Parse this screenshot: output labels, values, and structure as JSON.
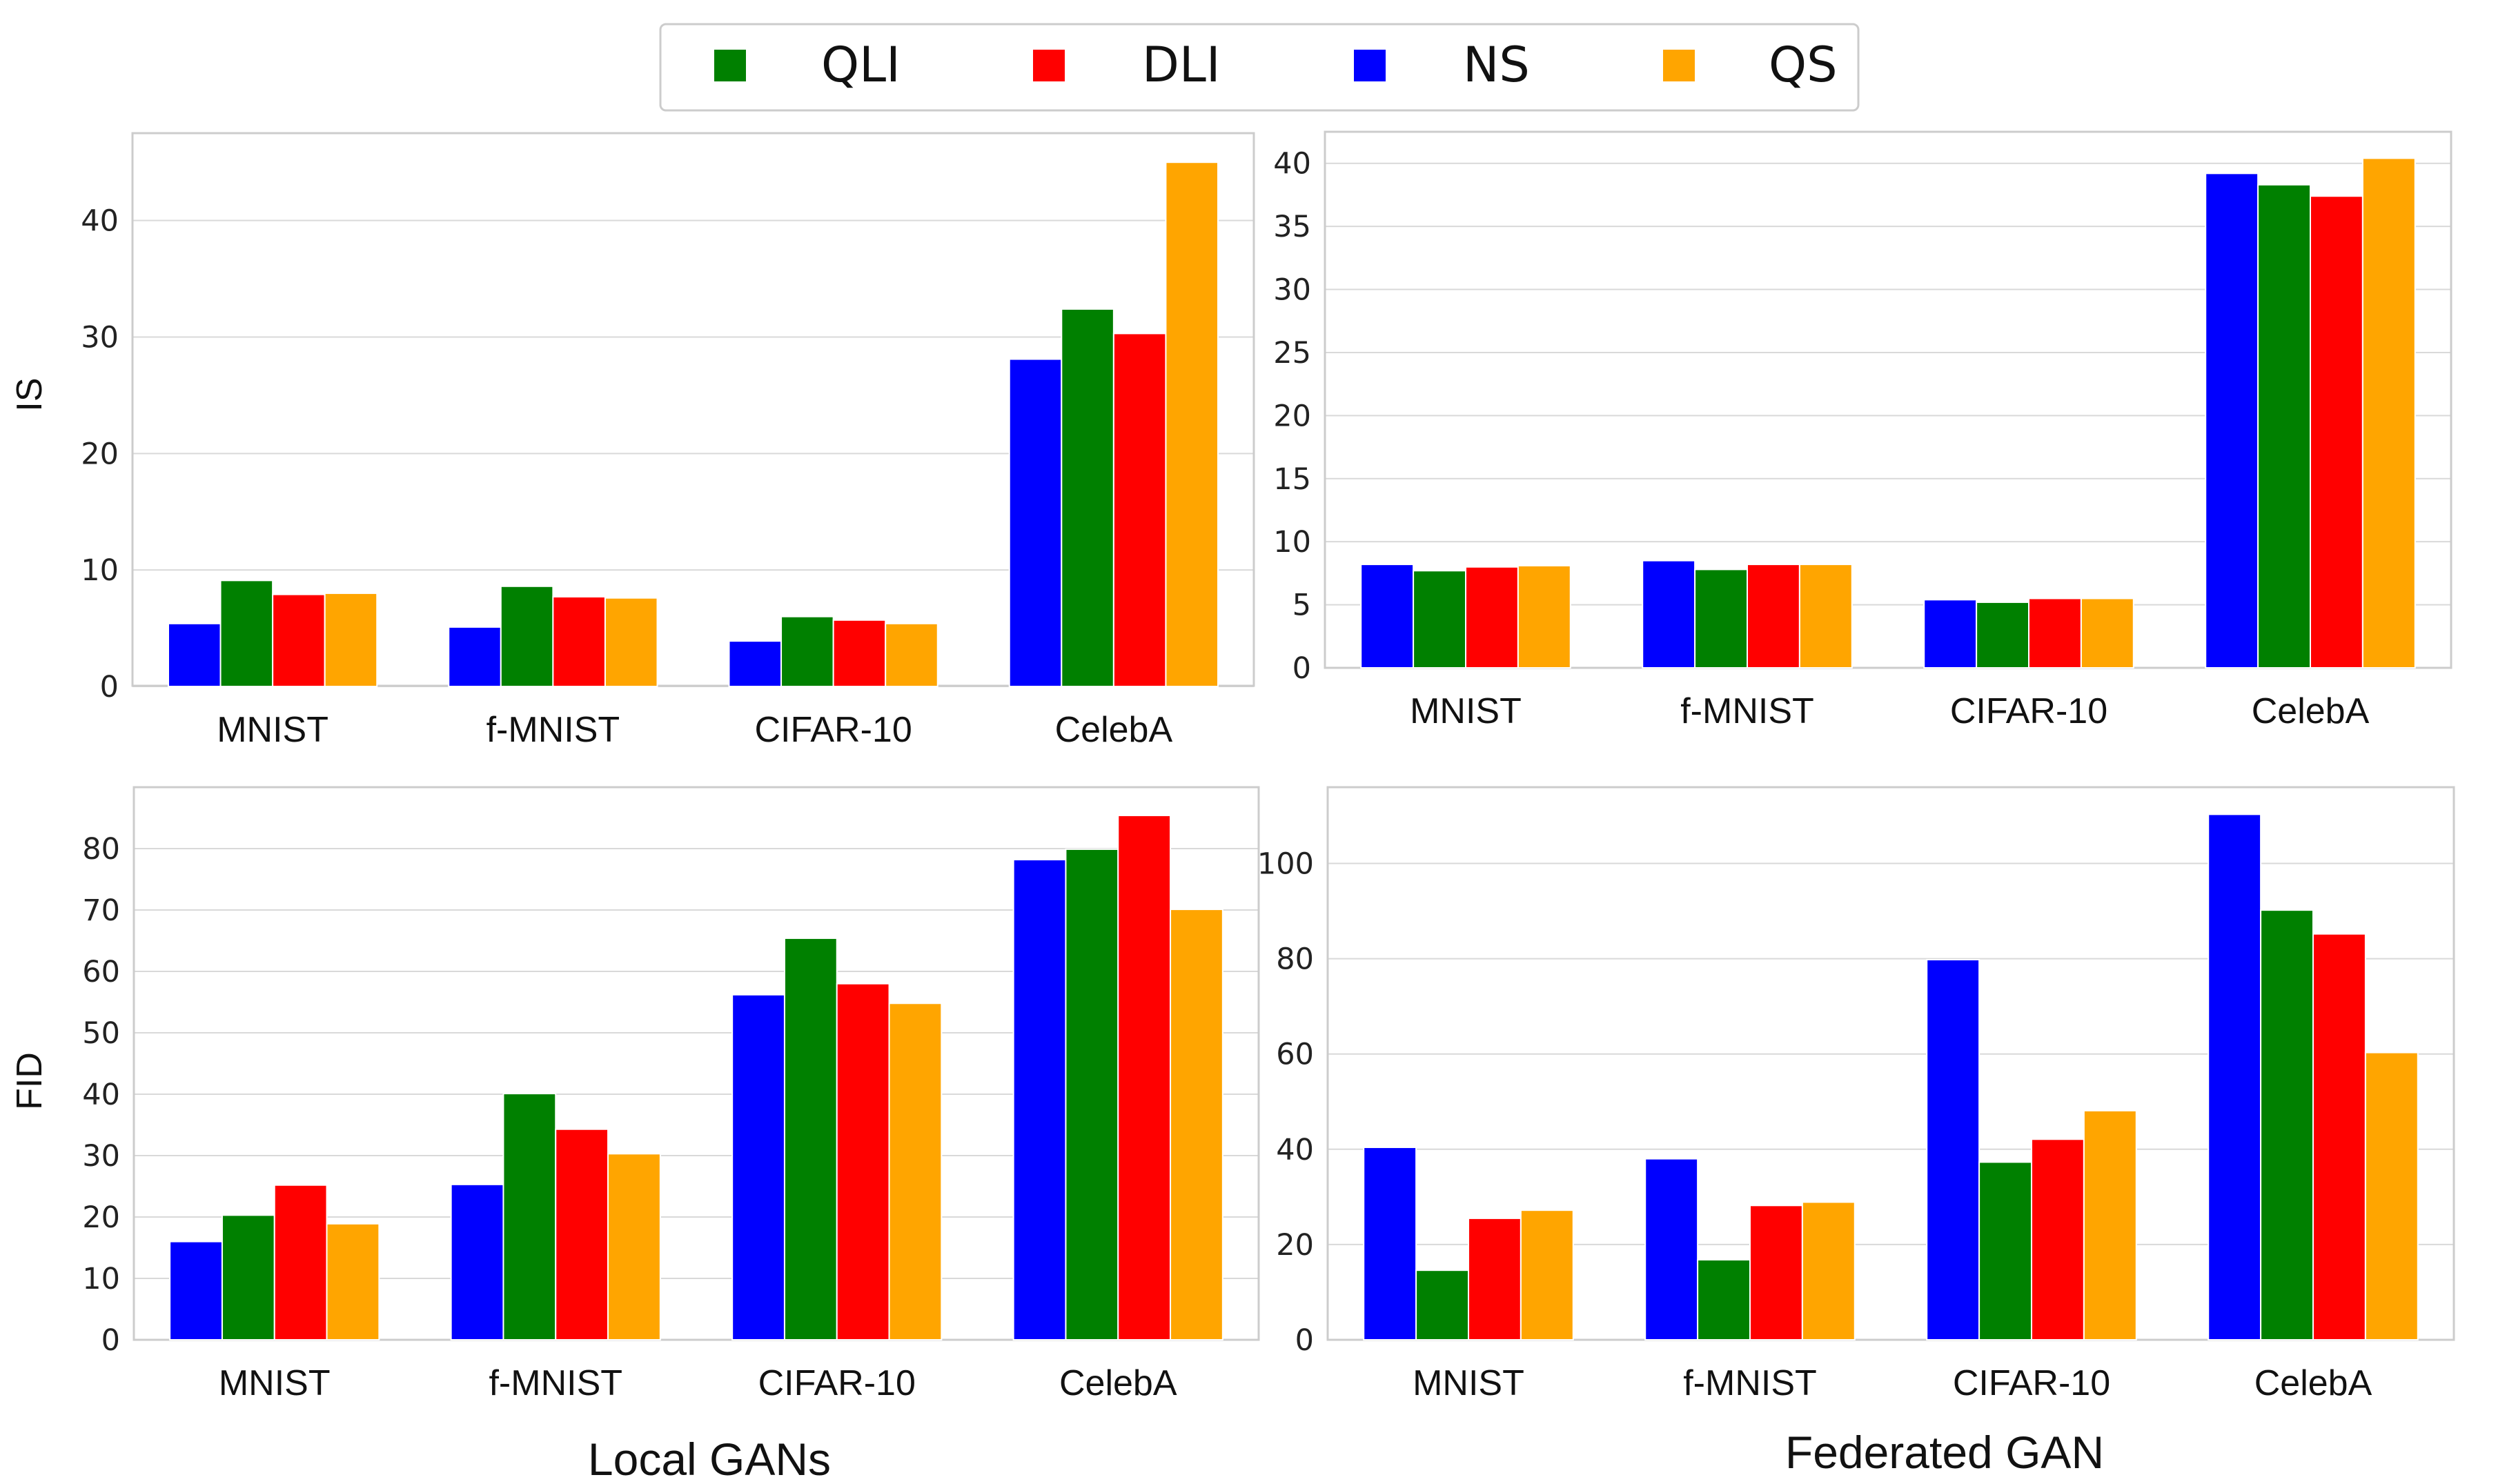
{
  "legend": [
    {
      "label": "QLI",
      "color": "#008000"
    },
    {
      "label": "DLI",
      "color": "#ff0000"
    },
    {
      "label": "NS",
      "color": "#0000ff"
    },
    {
      "label": "QS",
      "color": "#ffa500"
    }
  ],
  "series_order": [
    "NS",
    "QLI",
    "DLI",
    "QS"
  ],
  "captions": {
    "left": "Local GANs",
    "right": "Federated GAN"
  },
  "chart_data": [
    {
      "type": "bar",
      "id": "local-is",
      "categories": [
        "MNIST",
        "f-MNIST",
        "CIFAR-10",
        "CelebA"
      ],
      "ylabel": "IS",
      "ylim": [
        0,
        47.5
      ],
      "yticks": [
        0,
        10,
        20,
        30,
        40
      ],
      "grid": true,
      "series": [
        {
          "name": "NS",
          "values": [
            5.4,
            5.1,
            3.9,
            28.1
          ]
        },
        {
          "name": "QLI",
          "values": [
            9.1,
            8.6,
            6.0,
            32.4
          ]
        },
        {
          "name": "DLI",
          "values": [
            7.9,
            7.7,
            5.7,
            30.3
          ]
        },
        {
          "name": "QS",
          "values": [
            8.0,
            7.6,
            5.4,
            45.0
          ]
        }
      ]
    },
    {
      "type": "bar",
      "id": "federated-is",
      "categories": [
        "MNIST",
        "f-MNIST",
        "CIFAR-10",
        "CelebA"
      ],
      "ylabel": "",
      "ylim": [
        0,
        42.5
      ],
      "yticks": [
        0,
        5,
        10,
        15,
        20,
        25,
        30,
        35,
        40
      ],
      "grid": true,
      "series": [
        {
          "name": "NS",
          "values": [
            8.2,
            8.5,
            5.4,
            39.2
          ]
        },
        {
          "name": "QLI",
          "values": [
            7.7,
            7.8,
            5.2,
            38.3
          ]
        },
        {
          "name": "DLI",
          "values": [
            8.0,
            8.2,
            5.5,
            37.4
          ]
        },
        {
          "name": "QS",
          "values": [
            8.1,
            8.2,
            5.5,
            40.4
          ]
        }
      ]
    },
    {
      "type": "bar",
      "id": "local-fid",
      "categories": [
        "MNIST",
        "f-MNIST",
        "CIFAR-10",
        "CelebA"
      ],
      "ylabel": "FID",
      "ylim": [
        0,
        90
      ],
      "yticks": [
        0,
        10,
        20,
        30,
        40,
        50,
        60,
        70,
        80
      ],
      "grid": true,
      "series": [
        {
          "name": "NS",
          "values": [
            16.0,
            25.3,
            56.2,
            78.2
          ]
        },
        {
          "name": "QLI",
          "values": [
            20.3,
            40.1,
            65.4,
            79.9
          ]
        },
        {
          "name": "DLI",
          "values": [
            25.2,
            34.3,
            58.0,
            85.4
          ]
        },
        {
          "name": "QS",
          "values": [
            18.9,
            30.3,
            54.8,
            70.1
          ]
        }
      ]
    },
    {
      "type": "bar",
      "id": "federated-fid",
      "categories": [
        "MNIST",
        "f-MNIST",
        "CIFAR-10",
        "CelebA"
      ],
      "ylabel": "",
      "ylim": [
        0,
        116
      ],
      "yticks": [
        0,
        20,
        40,
        60,
        80,
        100
      ],
      "grid": true,
      "series": [
        {
          "name": "NS",
          "values": [
            40.4,
            38.0,
            79.8,
            110.3
          ]
        },
        {
          "name": "QLI",
          "values": [
            14.6,
            16.8,
            37.3,
            90.2
          ]
        },
        {
          "name": "DLI",
          "values": [
            25.5,
            28.2,
            42.1,
            85.2
          ]
        },
        {
          "name": "QS",
          "values": [
            27.2,
            28.9,
            48.1,
            60.3
          ]
        }
      ]
    }
  ]
}
